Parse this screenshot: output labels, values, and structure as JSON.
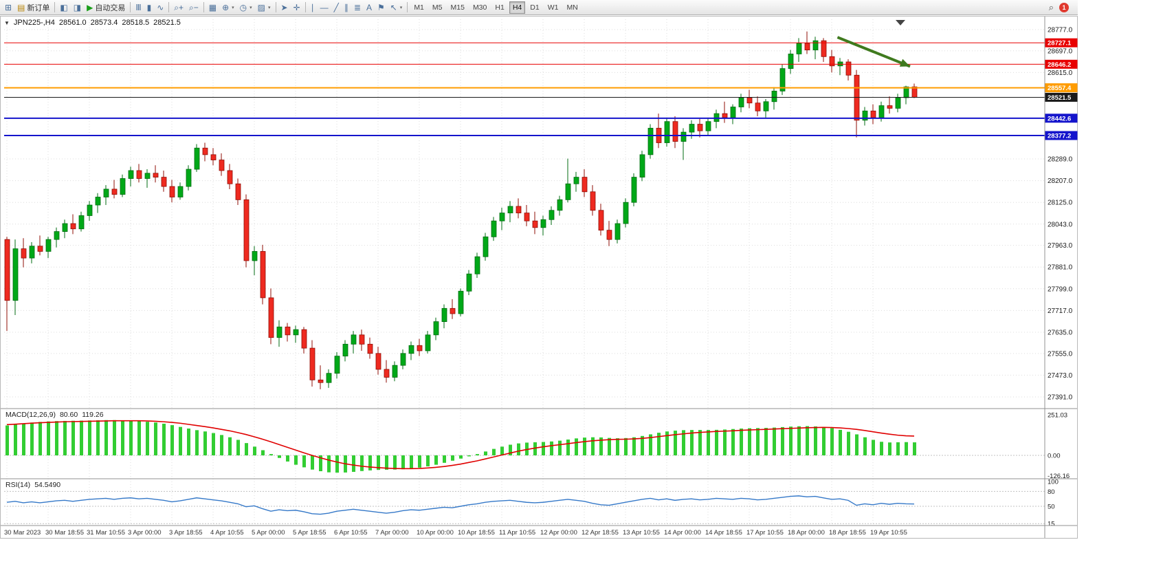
{
  "toolbar": {
    "new_order_label": "新订单",
    "auto_trading_label": "自动交易",
    "search_glyph": "⌕",
    "notification_count": "1",
    "timeframes": [
      "M1",
      "M5",
      "M15",
      "M30",
      "H1",
      "H4",
      "D1",
      "W1",
      "MN"
    ],
    "active_timeframe": "H4",
    "items": [
      {
        "name": "new-chart-button",
        "icon": "chart-plus-icon",
        "glyph": "⊞"
      },
      {
        "name": "new-order-button",
        "icon": "new-order-icon",
        "glyph": "▤",
        "label_key": "new_order_label",
        "color": "#b8860b"
      },
      {
        "sep": true
      },
      {
        "name": "market-watch-button",
        "icon": "market-watch-icon",
        "glyph": "◧"
      },
      {
        "name": "navigator-button",
        "icon": "navigator-icon",
        "glyph": "◨"
      },
      {
        "name": "auto-trading-button",
        "icon": "auto-trading-play-icon",
        "glyph": "▶",
        "label_key": "auto_trading_label",
        "color": "#1a9e1a"
      },
      {
        "sep": true
      },
      {
        "name": "bar-chart-button",
        "icon": "bar-chart-icon",
        "glyph": "Ⅲ"
      },
      {
        "name": "candlestick-chart-button",
        "icon": "candlestick-icon",
        "glyph": "▮"
      },
      {
        "name": "line-chart-button",
        "icon": "line-chart-icon",
        "glyph": "∿"
      },
      {
        "sep": true
      },
      {
        "name": "zoom-in-button",
        "icon": "zoom-in-icon",
        "glyph": "⌕+"
      },
      {
        "name": "zoom-out-button",
        "icon": "zoom-out-icon",
        "glyph": "⌕−"
      },
      {
        "sep": true
      },
      {
        "name": "tile-windows-button",
        "icon": "tile-windows-icon",
        "glyph": "▦"
      },
      {
        "name": "indicators-button",
        "icon": "indicators-icon",
        "glyph": "⊕",
        "dropdown": true
      },
      {
        "name": "periods-button",
        "icon": "clock-icon",
        "glyph": "◷",
        "dropdown": true
      },
      {
        "name": "templates-button",
        "icon": "template-icon",
        "glyph": "▨",
        "dropdown": true
      },
      {
        "sep": true
      },
      {
        "name": "cursor-button",
        "icon": "cursor-icon",
        "glyph": "➤"
      },
      {
        "name": "crosshair-button",
        "icon": "crosshair-icon",
        "glyph": "✛"
      },
      {
        "sep": true
      },
      {
        "name": "vertical-line-button",
        "icon": "vertical-line-icon",
        "glyph": "∣"
      },
      {
        "name": "horizontal-line-button",
        "icon": "horizontal-line-icon",
        "glyph": "―"
      },
      {
        "name": "trendline-button",
        "icon": "trendline-icon",
        "glyph": "╱"
      },
      {
        "name": "channel-button",
        "icon": "channel-icon",
        "glyph": "∥"
      },
      {
        "name": "fibonacci-button",
        "icon": "fibonacci-icon",
        "glyph": "≣"
      },
      {
        "name": "text-button",
        "icon": "text-icon",
        "glyph": "A"
      },
      {
        "name": "label-button",
        "icon": "label-icon",
        "glyph": "⚑"
      },
      {
        "name": "arrows-button",
        "icon": "arrows-icon",
        "glyph": "↖",
        "dropdown": true
      },
      {
        "sep": true
      }
    ]
  },
  "chart_header": {
    "collapse_arrow": "▼",
    "symbol_period": "JPN225-,H4",
    "open": "28561.0",
    "high": "28573.4",
    "low": "28518.5",
    "close": "28521.5"
  },
  "price_axis": {
    "labels": [
      "28777.0",
      "28697.0",
      "28615.0",
      "28289.0",
      "28207.0",
      "28125.0",
      "28043.0",
      "27963.0",
      "27881.0",
      "27799.0",
      "27717.0",
      "27635.0",
      "27555.0",
      "27473.0",
      "27391.0"
    ]
  },
  "hlines": [
    {
      "name": "resistance-line-1",
      "label": "28727.1",
      "price": 28727.1,
      "color": "#e80000",
      "width": 1
    },
    {
      "name": "resistance-line-2",
      "label": "28646.2",
      "price": 28646.2,
      "color": "#e80000",
      "width": 1
    },
    {
      "name": "pivot-line",
      "label": "28557.4",
      "price": 28557.4,
      "color": "#ff9c00",
      "width": 2
    },
    {
      "name": "bid-price-line",
      "label": "28521.5",
      "price": 28521.5,
      "color": "#1a1a1a",
      "width": 1
    },
    {
      "name": "support-line-1",
      "label": "28442.6",
      "price": 28442.6,
      "color": "#1414cc",
      "width": 2
    },
    {
      "name": "support-line-2",
      "label": "28377.2",
      "price": 28377.2,
      "color": "#1414cc",
      "width": 2
    }
  ],
  "macd_panel": {
    "title": "MACD(12,26,9)",
    "main_value": "80.60",
    "signal_value": "119.26",
    "axis_labels": [
      "251.03",
      "0.00",
      "-126.16"
    ],
    "axis_values": [
      251.03,
      0,
      -126.16
    ]
  },
  "rsi_panel": {
    "title": "RSI(14)",
    "value": "54.5490",
    "axis_labels": [
      "100",
      "80",
      "50",
      "15"
    ],
    "axis_values": [
      100,
      80,
      50,
      15
    ],
    "levels": [
      80,
      50,
      15
    ]
  },
  "time_axis": {
    "candles_per_label": 5,
    "labels": [
      "30 Mar 2023",
      "30 Mar 18:55",
      "31 Mar 10:55",
      "3 Apr 00:00",
      "3 Apr 18:55",
      "4 Apr 10:55",
      "5 Apr 00:00",
      "5 Apr 18:55",
      "6 Apr 10:55",
      "7 Apr 00:00",
      "10 Apr 00:00",
      "10 Apr 18:55",
      "11 Apr 10:55",
      "12 Apr 00:00",
      "12 Apr 18:55",
      "13 Apr 10:55",
      "14 Apr 00:00",
      "14 Apr 18:55",
      "17 Apr 10:55",
      "18 Apr 00:00",
      "18 Apr 18:55",
      "19 Apr 10:55"
    ]
  },
  "colors": {
    "candle_up": "#00a818",
    "candle_up_border": "#016b10",
    "candle_down": "#ee2a20",
    "candle_down_border": "#8f0e06",
    "macd_histogram": "#32cd32",
    "macd_signal": "#e00000",
    "rsi_line": "#3478c8",
    "grid": "#dcdcdc",
    "arrow": "#3f7a1e"
  },
  "chart_data": {
    "type": "candlestick-with-indicators",
    "symbol": "JPN225-",
    "period": "H4",
    "price_range": {
      "top_price": 28777.0,
      "bottom_price": 27391.0
    },
    "candles_ohlc": [
      [
        27985,
        27995,
        27640,
        27755
      ],
      [
        27755,
        27985,
        27700,
        27950
      ],
      [
        27950,
        27990,
        27880,
        27915
      ],
      [
        27915,
        27975,
        27895,
        27960
      ],
      [
        27960,
        28000,
        27925,
        27940
      ],
      [
        27940,
        27995,
        27915,
        27985
      ],
      [
        27985,
        28030,
        27955,
        28015
      ],
      [
        28015,
        28060,
        27990,
        28045
      ],
      [
        28045,
        28080,
        28005,
        28025
      ],
      [
        28025,
        28090,
        28015,
        28075
      ],
      [
        28075,
        28130,
        28055,
        28115
      ],
      [
        28115,
        28160,
        28085,
        28145
      ],
      [
        28145,
        28190,
        28115,
        28175
      ],
      [
        28175,
        28210,
        28140,
        28155
      ],
      [
        28155,
        28230,
        28145,
        28215
      ],
      [
        28215,
        28260,
        28185,
        28245
      ],
      [
        28245,
        28270,
        28200,
        28215
      ],
      [
        28215,
        28250,
        28180,
        28235
      ],
      [
        28235,
        28265,
        28200,
        28220
      ],
      [
        28220,
        28245,
        28165,
        28185
      ],
      [
        28185,
        28210,
        28125,
        28145
      ],
      [
        28145,
        28200,
        28135,
        28185
      ],
      [
        28185,
        28265,
        28170,
        28250
      ],
      [
        28250,
        28345,
        28240,
        28330
      ],
      [
        28330,
        28350,
        28280,
        28305
      ],
      [
        28305,
        28330,
        28265,
        28285
      ],
      [
        28285,
        28310,
        28225,
        28245
      ],
      [
        28245,
        28270,
        28175,
        28195
      ],
      [
        28195,
        28215,
        28115,
        28135
      ],
      [
        28135,
        28155,
        27880,
        27905
      ],
      [
        27905,
        27960,
        27850,
        27940
      ],
      [
        27940,
        27965,
        27740,
        27765
      ],
      [
        27765,
        27800,
        27590,
        27615
      ],
      [
        27615,
        27680,
        27580,
        27655
      ],
      [
        27655,
        27670,
        27600,
        27625
      ],
      [
        27625,
        27660,
        27595,
        27645
      ],
      [
        27645,
        27655,
        27555,
        27575
      ],
      [
        27575,
        27605,
        27430,
        27455
      ],
      [
        27455,
        27510,
        27420,
        27445
      ],
      [
        27445,
        27495,
        27425,
        27480
      ],
      [
        27480,
        27560,
        27460,
        27545
      ],
      [
        27545,
        27605,
        27525,
        27590
      ],
      [
        27590,
        27640,
        27555,
        27625
      ],
      [
        27625,
        27645,
        27565,
        27590
      ],
      [
        27590,
        27615,
        27535,
        27555
      ],
      [
        27555,
        27580,
        27475,
        27495
      ],
      [
        27495,
        27530,
        27445,
        27465
      ],
      [
        27465,
        27525,
        27450,
        27510
      ],
      [
        27510,
        27570,
        27495,
        27555
      ],
      [
        27555,
        27600,
        27530,
        27585
      ],
      [
        27585,
        27610,
        27545,
        27565
      ],
      [
        27565,
        27640,
        27555,
        27625
      ],
      [
        27625,
        27690,
        27605,
        27675
      ],
      [
        27675,
        27740,
        27650,
        27725
      ],
      [
        27725,
        27760,
        27685,
        27705
      ],
      [
        27705,
        27800,
        27695,
        27790
      ],
      [
        27790,
        27870,
        27775,
        27855
      ],
      [
        27855,
        27935,
        27840,
        27920
      ],
      [
        27920,
        28010,
        27905,
        27995
      ],
      [
        27995,
        28070,
        27980,
        28055
      ],
      [
        28055,
        28105,
        28020,
        28085
      ],
      [
        28085,
        28130,
        28050,
        28110
      ],
      [
        28110,
        28140,
        28065,
        28085
      ],
      [
        28085,
        28115,
        28035,
        28055
      ],
      [
        28055,
        28090,
        28005,
        28030
      ],
      [
        28030,
        28075,
        28000,
        28060
      ],
      [
        28060,
        28110,
        28040,
        28095
      ],
      [
        28095,
        28150,
        28075,
        28135
      ],
      [
        28135,
        28290,
        28125,
        28195
      ],
      [
        28195,
        28240,
        28165,
        28220
      ],
      [
        28220,
        28250,
        28145,
        28165
      ],
      [
        28165,
        28190,
        28075,
        28095
      ],
      [
        28095,
        28120,
        28000,
        28020
      ],
      [
        28020,
        28055,
        27960,
        27985
      ],
      [
        27985,
        28060,
        27970,
        28045
      ],
      [
        28045,
        28140,
        28030,
        28125
      ],
      [
        28125,
        28235,
        28110,
        28220
      ],
      [
        28220,
        28320,
        28205,
        28305
      ],
      [
        28305,
        28420,
        28290,
        28405
      ],
      [
        28405,
        28460,
        28330,
        28350
      ],
      [
        28350,
        28445,
        28335,
        28430
      ],
      [
        28430,
        28450,
        28330,
        28355
      ],
      [
        28355,
        28405,
        28285,
        28390
      ],
      [
        28390,
        28435,
        28365,
        28420
      ],
      [
        28420,
        28440,
        28370,
        28395
      ],
      [
        28395,
        28445,
        28380,
        28430
      ],
      [
        28430,
        28475,
        28405,
        28460
      ],
      [
        28460,
        28505,
        28425,
        28445
      ],
      [
        28445,
        28495,
        28420,
        28485
      ],
      [
        28485,
        28535,
        28465,
        28520
      ],
      [
        28520,
        28550,
        28480,
        28500
      ],
      [
        28500,
        28525,
        28450,
        28470
      ],
      [
        28470,
        28515,
        28445,
        28505
      ],
      [
        28505,
        28560,
        28475,
        28545
      ],
      [
        28545,
        28645,
        28530,
        28630
      ],
      [
        28630,
        28700,
        28610,
        28685
      ],
      [
        28685,
        28745,
        28655,
        28725
      ],
      [
        28725,
        28770,
        28685,
        28700
      ],
      [
        28700,
        28750,
        28665,
        28735
      ],
      [
        28735,
        28745,
        28655,
        28675
      ],
      [
        28675,
        28700,
        28615,
        28640
      ],
      [
        28640,
        28670,
        28605,
        28655
      ],
      [
        28655,
        28665,
        28585,
        28605
      ],
      [
        28605,
        28625,
        28370,
        28435
      ],
      [
        28435,
        28485,
        28415,
        28470
      ],
      [
        28470,
        28495,
        28420,
        28445
      ],
      [
        28445,
        28505,
        28430,
        28490
      ],
      [
        28490,
        28525,
        28460,
        28480
      ],
      [
        28480,
        28535,
        28465,
        28520
      ],
      [
        28520,
        28565,
        28495,
        28561
      ],
      [
        28561,
        28573.4,
        28518.5,
        28521.5
      ]
    ],
    "macd": {
      "histogram": [
        185,
        192,
        198,
        203,
        207,
        210,
        212,
        213,
        214,
        215,
        216,
        217,
        218,
        218,
        217,
        215,
        212,
        208,
        203,
        196,
        187,
        176,
        166,
        156,
        148,
        138,
        126,
        112,
        96,
        76,
        54,
        32,
        8,
        -16,
        -38,
        -58,
        -74,
        -88,
        -98,
        -105,
        -107,
        -106,
        -102,
        -97,
        -93,
        -90,
        -89,
        -88,
        -86,
        -82,
        -76,
        -68,
        -58,
        -46,
        -33,
        -20,
        -6,
        8,
        24,
        40,
        54,
        66,
        74,
        79,
        81,
        83,
        86,
        91,
        98,
        105,
        110,
        112,
        111,
        108,
        106,
        107,
        112,
        120,
        130,
        140,
        148,
        153,
        156,
        157,
        157,
        157,
        158,
        160,
        163,
        166,
        168,
        169,
        170,
        172,
        175,
        178,
        180,
        181,
        179,
        175,
        168,
        158,
        146,
        130,
        112,
        96,
        84,
        80,
        81,
        82,
        80.6
      ],
      "signal": [
        190,
        193,
        196,
        199,
        202,
        204,
        206,
        208,
        209,
        210,
        211,
        212,
        213,
        214,
        214,
        214,
        214,
        213,
        211,
        208,
        204,
        199,
        192,
        185,
        178,
        170,
        161,
        152,
        141,
        129,
        115,
        100,
        84,
        67,
        50,
        33,
        16,
        0,
        -15,
        -29,
        -41,
        -52,
        -60,
        -67,
        -72,
        -76,
        -79,
        -81,
        -82,
        -82,
        -81,
        -78,
        -74,
        -69,
        -62,
        -54,
        -44,
        -34,
        -22,
        -10,
        2,
        14,
        26,
        36,
        45,
        53,
        60,
        66,
        72,
        79,
        85,
        90,
        94,
        97,
        99,
        100,
        102,
        105,
        110,
        116,
        122,
        128,
        133,
        138,
        142,
        145,
        148,
        150,
        152,
        155,
        157,
        159,
        161,
        163,
        165,
        167,
        169,
        171,
        172,
        173,
        172,
        170,
        166,
        161,
        154,
        146,
        138,
        131,
        125,
        121,
        119.26
      ]
    },
    "rsi": [
      58,
      60,
      57,
      59,
      57,
      59,
      61,
      62,
      60,
      62,
      64,
      65,
      66,
      64,
      66,
      67,
      65,
      66,
      64,
      62,
      59,
      61,
      64,
      67,
      65,
      63,
      61,
      58,
      55,
      49,
      51,
      45,
      40,
      43,
      41,
      42,
      39,
      35,
      34,
      36,
      40,
      42,
      44,
      42,
      40,
      38,
      36,
      38,
      41,
      43,
      42,
      44,
      46,
      48,
      47,
      50,
      53,
      55,
      58,
      60,
      61,
      62,
      60,
      58,
      57,
      58,
      60,
      62,
      64,
      62,
      60,
      56,
      53,
      52,
      55,
      58,
      61,
      64,
      66,
      63,
      65,
      62,
      64,
      65,
      63,
      64,
      66,
      65,
      64,
      66,
      65,
      63,
      64,
      66,
      68,
      70,
      71,
      69,
      70,
      67,
      64,
      65,
      62,
      52,
      55,
      53,
      56,
      54,
      56,
      55,
      54.55
    ],
    "annotations": [
      {
        "type": "arrow",
        "name": "trend-arrow",
        "color": "#3f7a1e",
        "from_candle": 100.7,
        "from_price": 28748,
        "to_candle": 109.5,
        "to_price": 28638
      }
    ]
  }
}
